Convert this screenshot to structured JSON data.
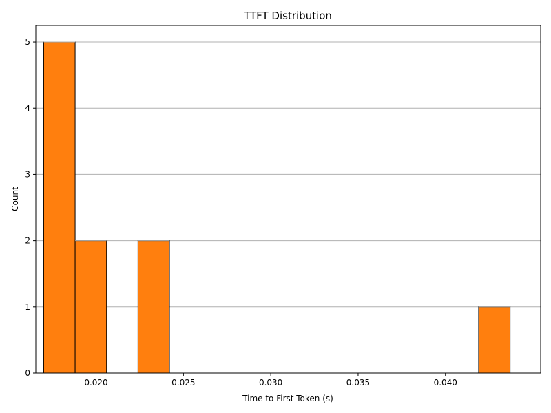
{
  "chart_data": {
    "type": "bar",
    "title": "TTFT Distribution",
    "xlabel": "Time to First Token (s)",
    "ylabel": "Count",
    "bar_color": "#ff7f0e",
    "edge_color": "#000000",
    "grid": "y",
    "xlim": [
      0.01655,
      0.04545
    ],
    "ylim": [
      0,
      5.25
    ],
    "x_ticks": [
      "0.020",
      "0.025",
      "0.030",
      "0.035",
      "0.040"
    ],
    "y_ticks": [
      "0",
      "1",
      "2",
      "3",
      "4",
      "5"
    ],
    "bins": [
      {
        "start": 0.017,
        "end": 0.0188,
        "count": 5
      },
      {
        "start": 0.0188,
        "end": 0.0206,
        "count": 2
      },
      {
        "start": 0.0224,
        "end": 0.0242,
        "count": 2
      },
      {
        "start": 0.0419,
        "end": 0.0437,
        "count": 1
      }
    ]
  }
}
